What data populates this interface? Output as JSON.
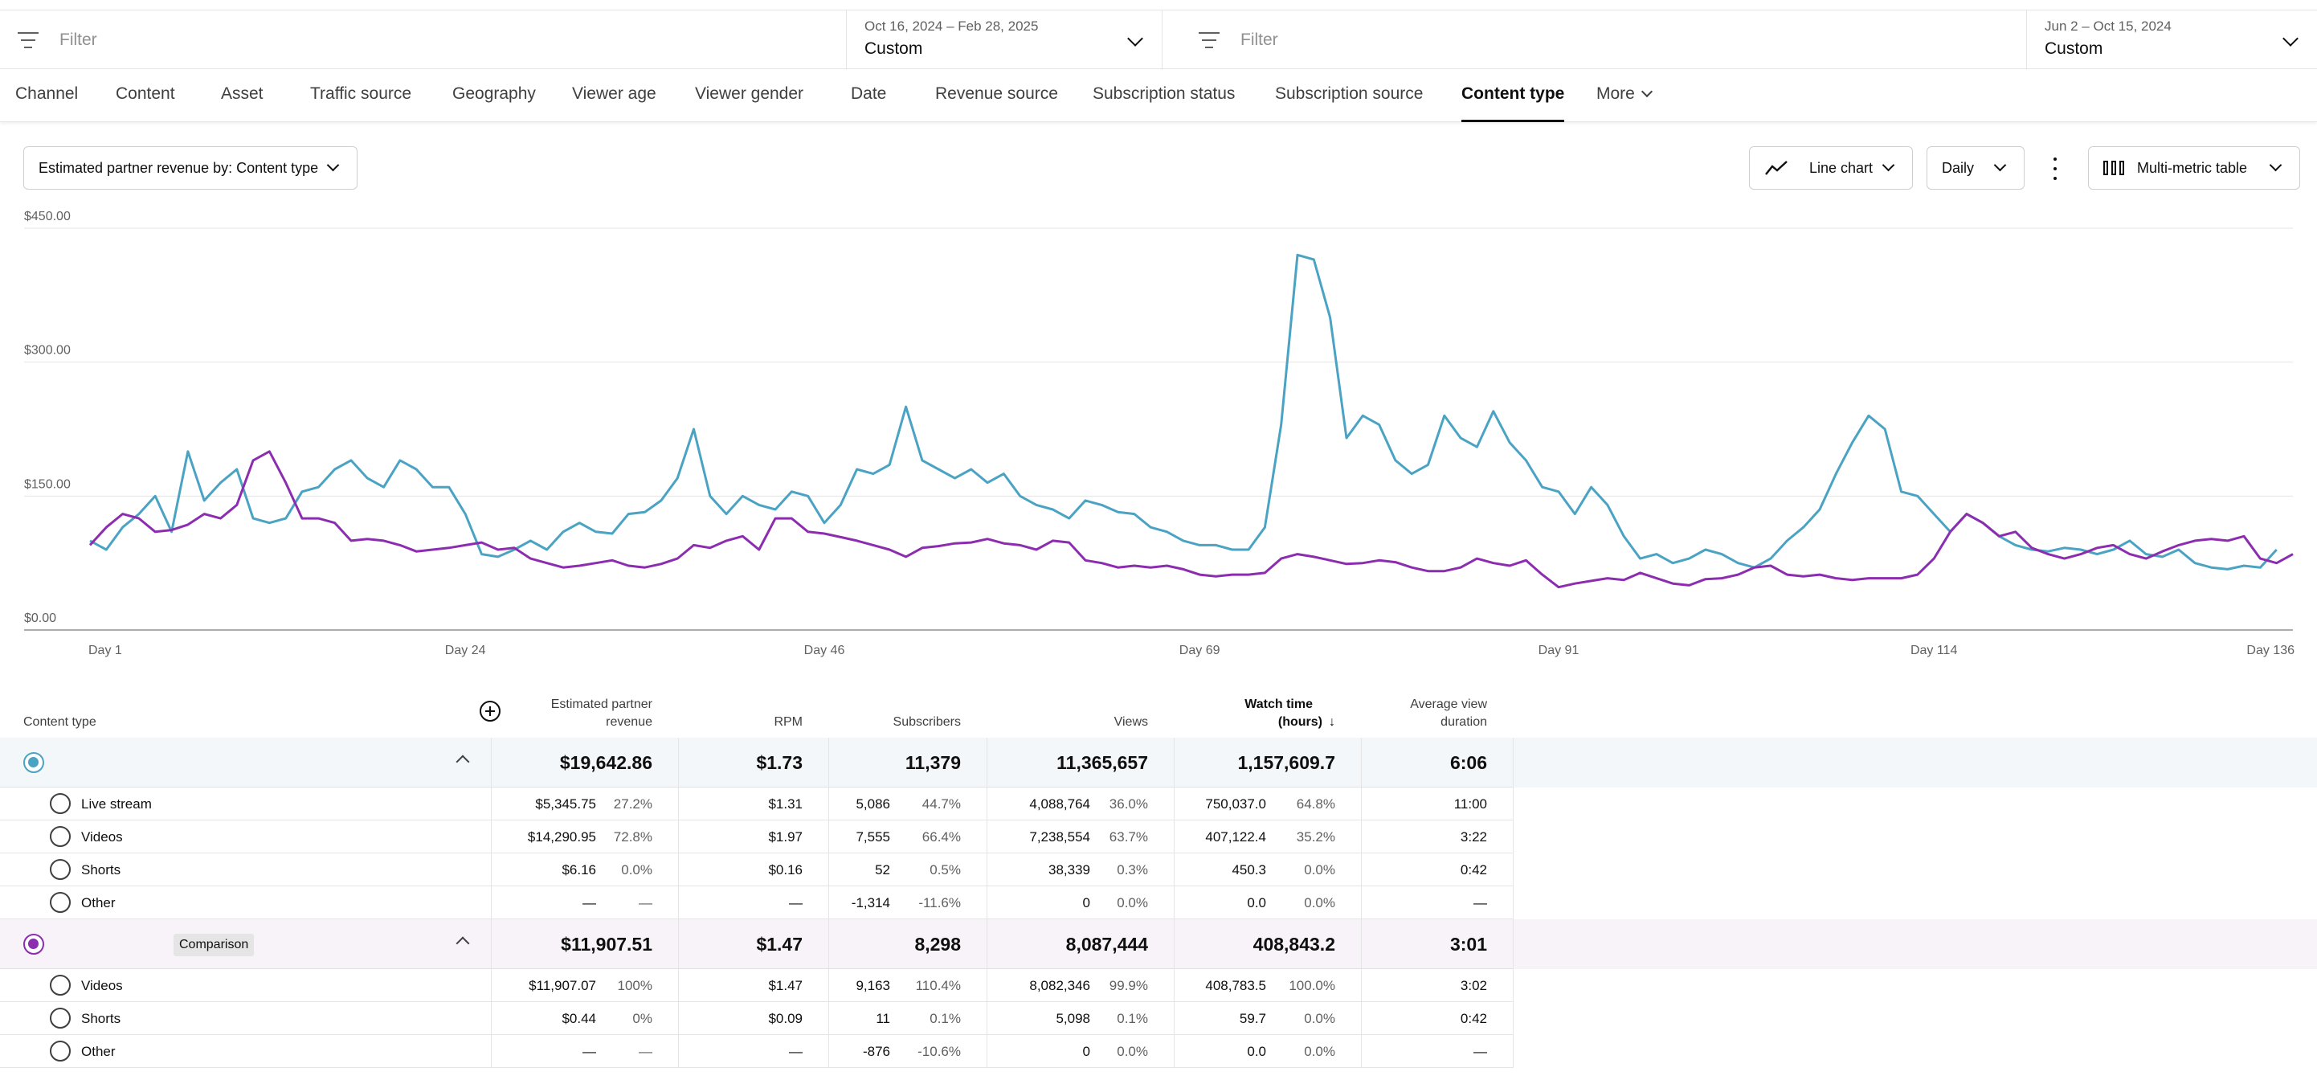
{
  "filter_bar": {
    "primary": {
      "filter_placeholder": "Filter",
      "date_range": "Oct 16, 2024 – Feb 28, 2025",
      "date_label": "Custom"
    },
    "comparison": {
      "filter_placeholder": "Filter",
      "date_range": "Jun 2 – Oct 15, 2024",
      "date_label": "Custom"
    }
  },
  "tabs": [
    {
      "label": "Channel"
    },
    {
      "label": "Content"
    },
    {
      "label": "Asset"
    },
    {
      "label": "Traffic source"
    },
    {
      "label": "Geography"
    },
    {
      "label": "Viewer age"
    },
    {
      "label": "Viewer gender"
    },
    {
      "label": "Date"
    },
    {
      "label": "Revenue source"
    },
    {
      "label": "Subscription status"
    },
    {
      "label": "Subscription source"
    },
    {
      "label": "Content type",
      "active": true
    },
    {
      "label": "More"
    }
  ],
  "controls": {
    "metric_select": "Estimated partner revenue by: Content type",
    "chart_type": "Line chart",
    "interval": "Daily",
    "table_type": "Multi-metric table"
  },
  "colors": {
    "primary_series": "#4aa3c3",
    "comparison_series": "#8c2db0"
  },
  "chart_data": {
    "type": "line",
    "y_ticks": [
      "$0.00",
      "$150.00",
      "$300.00",
      "$450.00"
    ],
    "ylim": [
      0,
      450
    ],
    "x_ticks": [
      {
        "day": 1,
        "label": "Day 1"
      },
      {
        "day": 24,
        "label": "Day 24"
      },
      {
        "day": 46,
        "label": "Day 46"
      },
      {
        "day": 69,
        "label": "Day 69"
      },
      {
        "day": 91,
        "label": "Day 91"
      },
      {
        "day": 114,
        "label": "Day 114"
      },
      {
        "day": 136,
        "label": "Day 136"
      }
    ],
    "xlim": [
      1,
      136
    ],
    "grid": true,
    "series": [
      {
        "color": "#4aa3c3",
        "values": [
          100,
          90,
          115,
          130,
          150,
          110,
          200,
          145,
          165,
          180,
          125,
          120,
          125,
          155,
          160,
          180,
          190,
          170,
          160,
          190,
          180,
          160,
          160,
          130,
          85,
          82,
          90,
          100,
          90,
          110,
          120,
          110,
          108,
          130,
          132,
          145,
          170,
          225,
          150,
          130,
          150,
          140,
          135,
          155,
          150,
          120,
          140,
          180,
          175,
          185,
          250,
          190,
          180,
          170,
          180,
          165,
          175,
          150,
          140,
          135,
          125,
          145,
          140,
          132,
          130,
          115,
          110,
          100,
          95,
          95,
          90,
          90,
          115,
          230,
          420,
          415,
          350,
          215,
          240,
          230,
          190,
          175,
          185,
          240,
          215,
          205,
          245,
          210,
          190,
          160,
          155,
          130,
          160,
          140,
          105,
          80,
          85,
          75,
          80,
          90,
          85,
          75,
          70,
          80,
          100,
          115,
          135,
          175,
          210,
          240,
          225,
          155,
          150,
          130,
          110,
          130,
          120,
          105,
          95,
          90,
          88,
          92,
          90,
          85,
          90,
          100,
          85,
          82,
          90,
          75,
          70,
          68,
          72,
          70,
          90
        ]
      },
      {
        "color": "#8c2db0",
        "values": [
          95,
          115,
          130,
          125,
          110,
          112,
          118,
          130,
          125,
          140,
          190,
          200,
          165,
          125,
          125,
          120,
          100,
          102,
          100,
          95,
          88,
          90,
          92,
          95,
          98,
          90,
          92,
          80,
          75,
          70,
          72,
          75,
          78,
          72,
          70,
          74,
          80,
          95,
          92,
          100,
          105,
          90,
          125,
          125,
          110,
          108,
          104,
          100,
          95,
          90,
          82,
          92,
          94,
          97,
          98,
          102,
          97,
          95,
          90,
          100,
          98,
          78,
          75,
          70,
          72,
          70,
          72,
          68,
          62,
          60,
          62,
          62,
          64,
          80,
          85,
          82,
          78,
          74,
          75,
          78,
          76,
          70,
          66,
          66,
          70,
          80,
          75,
          72,
          78,
          62,
          48,
          52,
          55,
          58,
          56,
          64,
          58,
          52,
          50,
          57,
          58,
          62,
          70,
          72,
          62,
          60,
          62,
          58,
          56,
          58,
          58,
          58,
          62,
          80,
          110,
          130,
          120,
          105,
          110,
          92,
          85,
          80,
          85,
          92,
          95,
          85,
          80,
          88,
          95,
          100,
          102,
          100,
          105,
          80,
          75,
          85
        ]
      }
    ]
  },
  "table": {
    "headers": {
      "content_type": "Content type",
      "revenue_line1": "Estimated partner",
      "revenue_line2": "revenue",
      "rpm": "RPM",
      "subscribers": "Subscribers",
      "views": "Views",
      "watch_line1": "Watch time",
      "watch_line2": "(hours)",
      "avd_line1": "Average view",
      "avd_line2": "duration"
    },
    "primary": {
      "total": {
        "revenue": "$19,642.86",
        "rpm": "$1.73",
        "subscribers": "11,379",
        "views": "11,365,657",
        "watch": "1,157,609.7",
        "avd": "6:06"
      },
      "rows": [
        {
          "name": "Live stream",
          "revenue": "$5,345.75",
          "revenue_pct": "27.2%",
          "rpm": "$1.31",
          "subscribers": "5,086",
          "subscribers_pct": "44.7%",
          "views": "4,088,764",
          "views_pct": "36.0%",
          "watch": "750,037.0",
          "watch_pct": "64.8%",
          "avd": "11:00"
        },
        {
          "name": "Videos",
          "revenue": "$14,290.95",
          "revenue_pct": "72.8%",
          "rpm": "$1.97",
          "subscribers": "7,555",
          "subscribers_pct": "66.4%",
          "views": "7,238,554",
          "views_pct": "63.7%",
          "watch": "407,122.4",
          "watch_pct": "35.2%",
          "avd": "3:22"
        },
        {
          "name": "Shorts",
          "revenue": "$6.16",
          "revenue_pct": "0.0%",
          "rpm": "$0.16",
          "subscribers": "52",
          "subscribers_pct": "0.5%",
          "views": "38,339",
          "views_pct": "0.3%",
          "watch": "450.3",
          "watch_pct": "0.0%",
          "avd": "0:42"
        },
        {
          "name": "Other",
          "revenue": "—",
          "revenue_pct": "—",
          "rpm": "—",
          "subscribers": "-1,314",
          "subscribers_pct": "-11.6%",
          "views": "0",
          "views_pct": "0.0%",
          "watch": "0.0",
          "watch_pct": "0.0%",
          "avd": "—"
        }
      ]
    },
    "comparison": {
      "badge": "Comparison",
      "total": {
        "revenue": "$11,907.51",
        "rpm": "$1.47",
        "subscribers": "8,298",
        "views": "8,087,444",
        "watch": "408,843.2",
        "avd": "3:01"
      },
      "rows": [
        {
          "name": "Videos",
          "revenue": "$11,907.07",
          "revenue_pct": "100%",
          "rpm": "$1.47",
          "subscribers": "9,163",
          "subscribers_pct": "110.4%",
          "views": "8,082,346",
          "views_pct": "99.9%",
          "watch": "408,783.5",
          "watch_pct": "100.0%",
          "avd": "3:02"
        },
        {
          "name": "Shorts",
          "revenue": "$0.44",
          "revenue_pct": "0%",
          "rpm": "$0.09",
          "subscribers": "11",
          "subscribers_pct": "0.1%",
          "views": "5,098",
          "views_pct": "0.1%",
          "watch": "59.7",
          "watch_pct": "0.0%",
          "avd": "0:42"
        },
        {
          "name": "Other",
          "revenue": "—",
          "revenue_pct": "—",
          "rpm": "—",
          "subscribers": "-876",
          "subscribers_pct": "-10.6%",
          "views": "0",
          "views_pct": "0.0%",
          "watch": "0.0",
          "watch_pct": "0.0%",
          "avd": "—"
        }
      ]
    }
  }
}
